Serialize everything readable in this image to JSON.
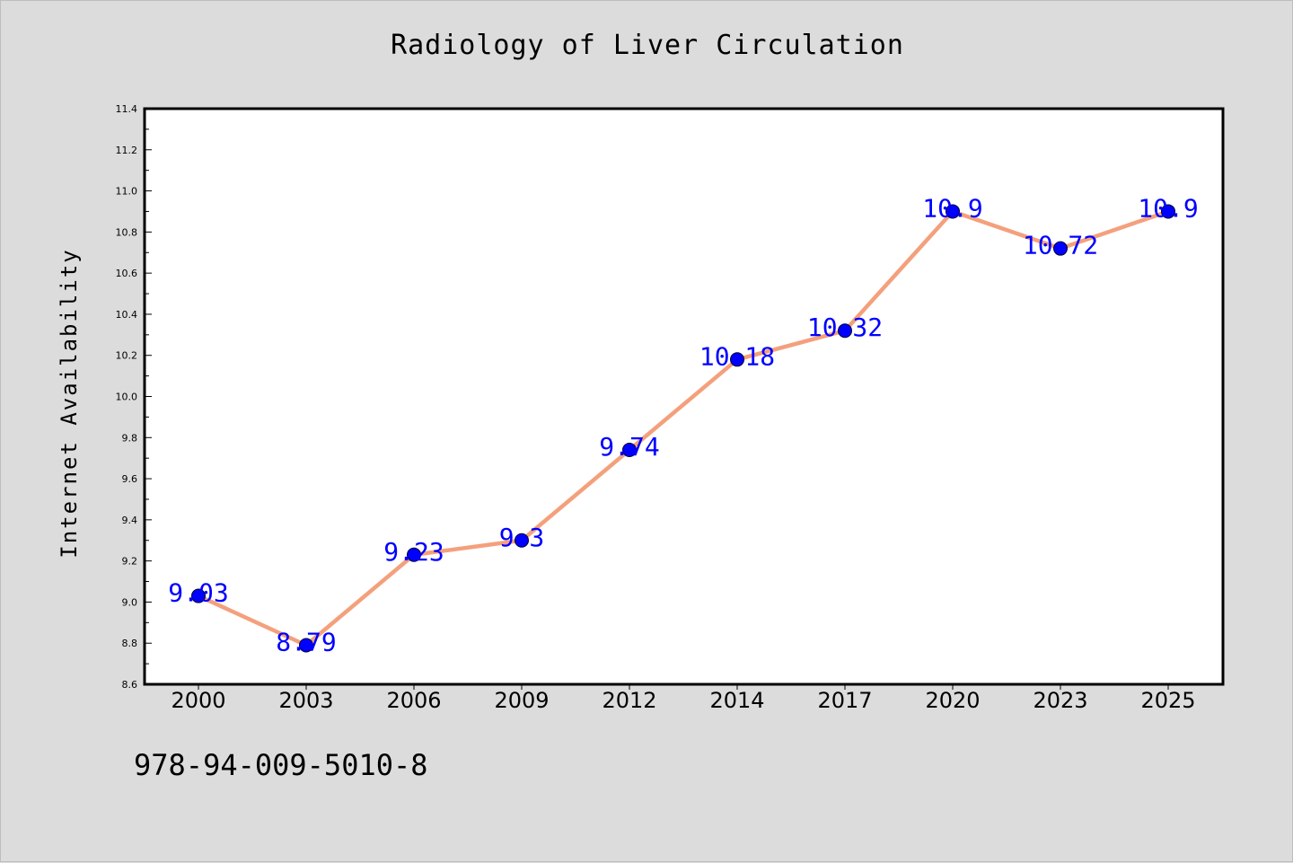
{
  "chart_data": {
    "type": "line",
    "title": "Radiology of Liver Circulation",
    "xlabel": "",
    "ylabel": "Internet Availability",
    "categories": [
      "2000",
      "2003",
      "2006",
      "2009",
      "2012",
      "2014",
      "2017",
      "2020",
      "2023",
      "2025"
    ],
    "values": [
      9.03,
      8.79,
      9.23,
      9.3,
      9.74,
      10.18,
      10.32,
      10.9,
      10.72,
      10.9
    ],
    "data_labels": [
      "9.03",
      "8.79",
      "9.23",
      "9.3",
      "9.74",
      "10.18",
      "10.32",
      "10.9",
      "10.72",
      "10.9"
    ],
    "ylim": [
      8.6,
      11.4
    ],
    "yticks": [
      "8.6",
      "8.8",
      "9.0",
      "9.2",
      "9.4",
      "9.6",
      "9.8",
      "10.0",
      "10.2",
      "10.4",
      "10.6",
      "10.8",
      "11.0",
      "11.2",
      "11.4"
    ],
    "grid": false,
    "legend": "none",
    "colors": {
      "line": "#f4a07c",
      "marker": "#0000ff",
      "data_label": "#0000ff",
      "plot_background": "#ffffff",
      "figure_background": "#dcdcdc"
    }
  },
  "footnote": "978-94-009-5010-8"
}
